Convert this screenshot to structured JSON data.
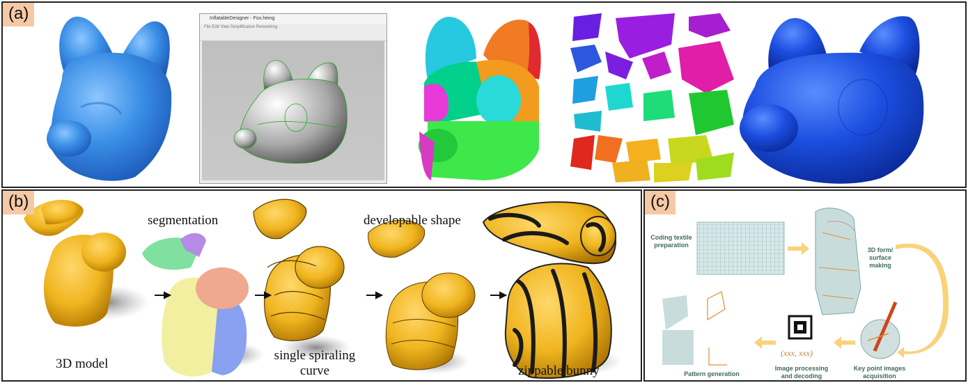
{
  "panel_a": {
    "tag": "(a)",
    "window": {
      "title": "InflatableDesigner - Fox.heing",
      "menu": "File  Edit  View  Simplification  Remeshing"
    }
  },
  "panel_b": {
    "tag": "(b)",
    "labels": {
      "segmentation": "segmentation",
      "developable": "developable shape",
      "model": "3D model",
      "spiral": "single spiraling curve",
      "zippable": "zippable bunny"
    }
  },
  "panel_c": {
    "tag": "(c)",
    "labels": {
      "coding": "Coding textile preparation",
      "form": "3D form/ surface making",
      "pattern": "Pattern generation",
      "image": "Image processing and decoding",
      "keypoint": "Key point images acquisition",
      "coords": "(xxx, xxx)"
    }
  },
  "colors": {
    "tag_bg": "#f6c9a6",
    "bunny": "#f0b51f",
    "fox_blue": "#3b8fe6",
    "arrow": "#f9d27a"
  }
}
